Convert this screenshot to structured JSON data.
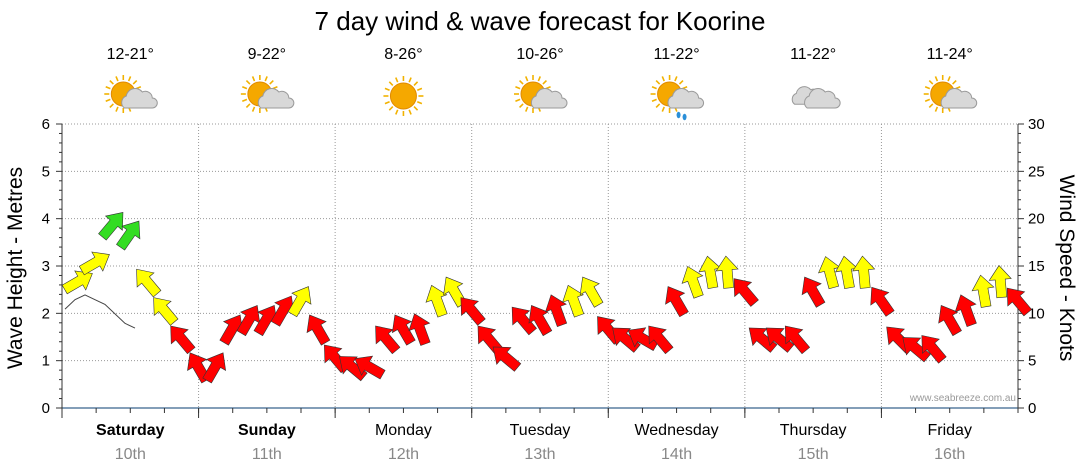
{
  "title": "7 day wind & wave forecast for Koorine",
  "watermark": "www.seabreeze.com.au",
  "left_axis_label": "Wave Height - Metres",
  "right_axis_label": "Wind Speed - Knots",
  "days": [
    {
      "name": "Saturday",
      "date": "10th",
      "temp": "12-21°",
      "icon": "partly-cloudy-icon",
      "bold": true
    },
    {
      "name": "Sunday",
      "date": "11th",
      "temp": "9-22°",
      "icon": "partly-cloudy-icon",
      "bold": true
    },
    {
      "name": "Monday",
      "date": "12th",
      "temp": "8-26°",
      "icon": "sunny-icon",
      "bold": false
    },
    {
      "name": "Tuesday",
      "date": "13th",
      "temp": "10-26°",
      "icon": "partly-cloudy-icon",
      "bold": false
    },
    {
      "name": "Wednesday",
      "date": "14th",
      "temp": "11-22°",
      "icon": "shower-icon",
      "bold": false
    },
    {
      "name": "Thursday",
      "date": "15th",
      "temp": "11-22°",
      "icon": "cloudy-icon",
      "bold": false
    },
    {
      "name": "Friday",
      "date": "16th",
      "temp": "11-24°",
      "icon": "partly-cloudy-icon",
      "bold": false
    }
  ],
  "colors": {
    "light": "#ffff00",
    "moderate": "#33dd22",
    "strong": "#ff0000"
  },
  "chart_data": {
    "type": "scatter",
    "left_axis": {
      "ylim": [
        0,
        6
      ],
      "ticks": [
        "0",
        "1",
        "2",
        "3",
        "4",
        "5",
        "6"
      ]
    },
    "right_axis": {
      "ylim": [
        0,
        30
      ],
      "ticks": [
        "0",
        "5",
        "10",
        "15",
        "20",
        "25",
        "30"
      ]
    },
    "series": [
      {
        "comment": "wind speed (knots) every 3 hours starting Saturday 00:00, with arrow colour class",
        "x": [
          "Sat 00",
          "Sat 03",
          "Sat 06",
          "Sat 09",
          "Sat 12",
          "Sat 15",
          "Sat 18",
          "Sat 21",
          "Sun 00",
          "Sun 03",
          "Sun 06",
          "Sun 09",
          "Sun 12",
          "Sun 15",
          "Sun 18",
          "Sun 21",
          "Mon 00",
          "Mon 03",
          "Mon 06",
          "Mon 09",
          "Mon 12",
          "Mon 15",
          "Mon 18",
          "Mon 21",
          "Tue 00",
          "Tue 03",
          "Tue 06",
          "Tue 09",
          "Tue 12",
          "Tue 15",
          "Tue 18",
          "Tue 21",
          "Wed 00",
          "Wed 03",
          "Wed 06",
          "Wed 09",
          "Wed 12",
          "Wed 15",
          "Wed 18",
          "Wed 21",
          "Thu 00",
          "Thu 03",
          "Thu 06",
          "Thu 09",
          "Thu 12",
          "Thu 15",
          "Thu 18",
          "Thu 21",
          "Fri 00",
          "Fri 03",
          "Fri 06",
          "Fri 09",
          "Fri 12",
          "Fri 15",
          "Fri 18",
          "Fri 21"
        ],
        "knots": [
          14,
          16,
          20,
          19,
          14,
          11,
          8,
          5,
          5,
          9,
          10,
          10,
          11,
          12,
          9,
          6,
          5,
          5,
          8,
          9,
          9,
          12,
          13,
          11,
          8,
          6,
          10,
          10,
          11,
          12,
          13,
          9,
          8,
          8,
          8,
          12,
          14,
          15,
          15,
          13,
          8,
          8,
          8,
          13,
          15,
          15,
          15,
          12,
          8,
          7,
          7,
          10,
          11,
          13,
          14,
          12
        ],
        "direction_deg": [
          60,
          60,
          40,
          35,
          320,
          320,
          320,
          330,
          30,
          30,
          30,
          30,
          30,
          30,
          330,
          320,
          310,
          300,
          320,
          330,
          340,
          340,
          330,
          320,
          320,
          310,
          320,
          330,
          340,
          340,
          330,
          320,
          310,
          300,
          320,
          330,
          340,
          350,
          355,
          320,
          310,
          310,
          320,
          330,
          345,
          350,
          355,
          325,
          315,
          310,
          320,
          330,
          340,
          350,
          355,
          320
        ],
        "level": [
          "light",
          "light",
          "moderate",
          "moderate",
          "light",
          "light",
          "strong",
          "strong",
          "strong",
          "strong",
          "strong",
          "strong",
          "strong",
          "light",
          "strong",
          "strong",
          "strong",
          "strong",
          "strong",
          "strong",
          "strong",
          "light",
          "light",
          "strong",
          "strong",
          "strong",
          "strong",
          "strong",
          "strong",
          "light",
          "light",
          "strong",
          "strong",
          "strong",
          "strong",
          "strong",
          "light",
          "light",
          "light",
          "strong",
          "strong",
          "strong",
          "strong",
          "strong",
          "light",
          "light",
          "light",
          "strong",
          "strong",
          "strong",
          "strong",
          "strong",
          "strong",
          "light",
          "light",
          "strong"
        ]
      },
      {
        "comment": "wave height (metres) thin baseline line",
        "wave_height": [
          2.3,
          2.5,
          2.6,
          2.5,
          2.4,
          2.2,
          2.0,
          1.9
        ]
      }
    ]
  }
}
